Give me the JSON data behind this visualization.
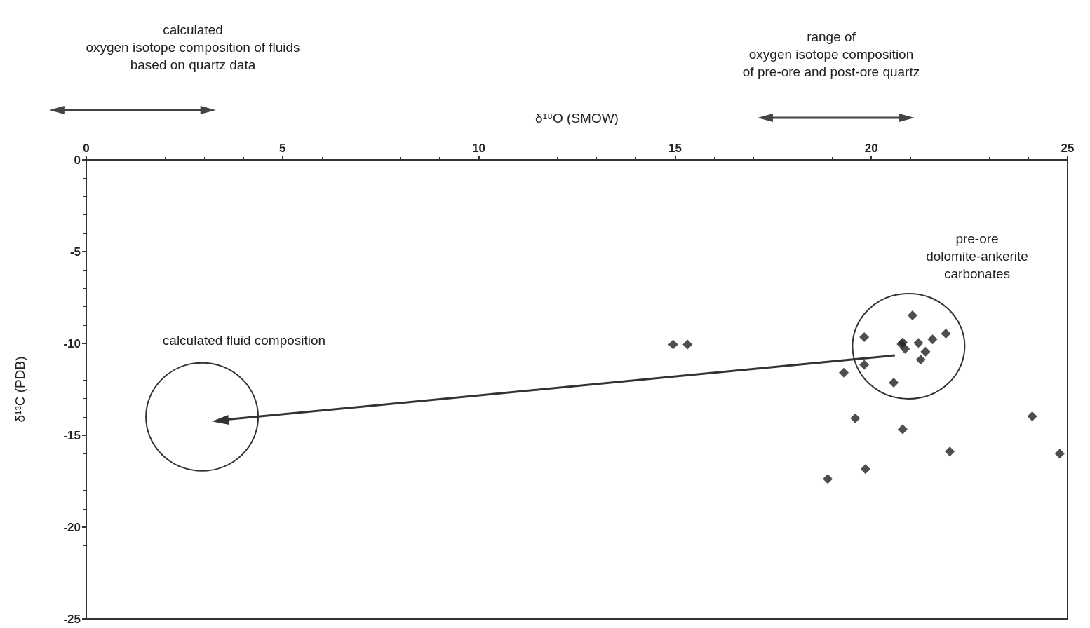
{
  "chart_data": {
    "type": "scatter",
    "xlabel": "δ¹⁸O (SMOW)",
    "ylabel": "δ¹³C (PDB)",
    "x": [
      21.05,
      19.82,
      20.77,
      20.86,
      20.8,
      21.2,
      21.56,
      21.9,
      21.38,
      21.26,
      19.82,
      19.3,
      20.57,
      19.59,
      20.8,
      24.1,
      22.0,
      24.8,
      19.85,
      18.89,
      14.95,
      15.32
    ],
    "values": [
      -8.47,
      -9.66,
      -10.04,
      -10.3,
      -9.94,
      -9.97,
      -9.78,
      -9.47,
      -10.45,
      -10.89,
      -11.16,
      -11.59,
      -12.14,
      -14.07,
      -14.68,
      -13.97,
      -15.89,
      -16.0,
      -16.84,
      -17.38,
      -10.06,
      -10.06
    ],
    "color": "#222222",
    "marker": "diamond",
    "xlim": [
      0,
      25
    ],
    "xticks": [
      0,
      5,
      10,
      15,
      20,
      25
    ],
    "ylim": [
      -25,
      0
    ],
    "yticks": [
      -25,
      -20,
      -15,
      -10,
      -5,
      0
    ],
    "grid": false,
    "annotations": [
      "calculated\noxygen isotope composition of fluids\nbased on quartz data",
      "range of\noxygen isotope composition\nof pre-ore and post-ore quartz",
      "pre-ore\ndolomite-ankerite\ncarbonates",
      "calculated fluid composition"
    ]
  }
}
